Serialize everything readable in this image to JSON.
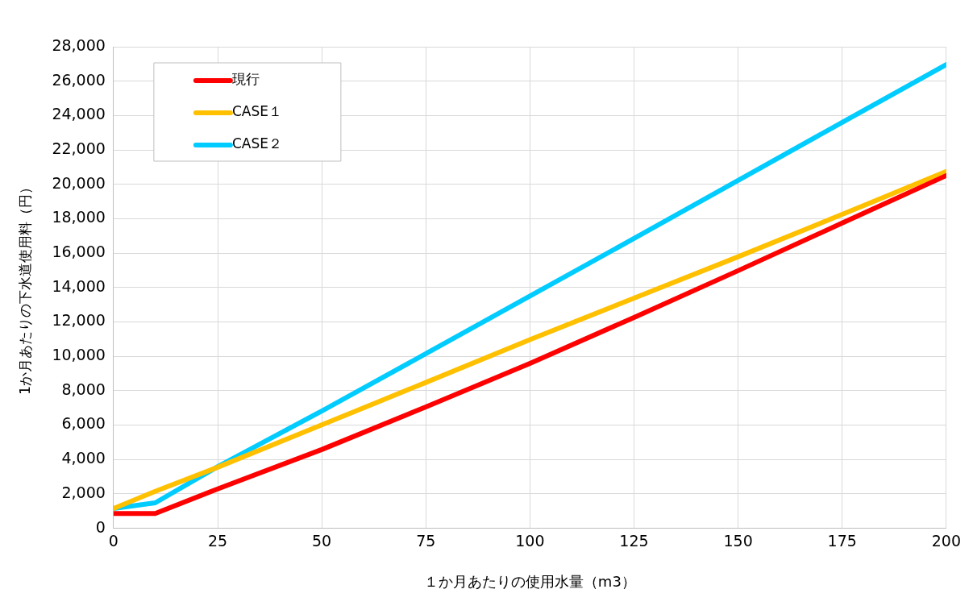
{
  "chart_data": {
    "type": "line",
    "xlabel": "１か月あたりの使用水量（m3）",
    "ylabel": "1か月あたりの下水道使用料（円）",
    "x": [
      0,
      10,
      25,
      50,
      75,
      100,
      125,
      150,
      175,
      200
    ],
    "series": [
      {
        "name": "現行",
        "color": "#ff0000",
        "values": [
          860,
          860,
          2290,
          4580,
          7060,
          9590,
          12260,
          14980,
          17750,
          20510
        ]
      },
      {
        "name": "CASE１",
        "color": "#ffc000",
        "values": [
          1150,
          2150,
          3550,
          6010,
          8480,
          10970,
          13380,
          15790,
          18250,
          20750
        ]
      },
      {
        "name": "CASE２",
        "color": "#00ccff",
        "values": [
          1150,
          1480,
          3580,
          6820,
          10150,
          13500,
          16850,
          20230,
          23600,
          26960
        ]
      }
    ],
    "xlim": [
      0,
      200
    ],
    "xticks": [
      0,
      25,
      50,
      75,
      100,
      125,
      150,
      175,
      200
    ],
    "ylim": [
      0,
      28000
    ],
    "yticks": [
      0,
      {
        "value": 2000,
        "label": "2,000"
      },
      {
        "value": 4000,
        "label": "4,000"
      },
      {
        "value": 6000,
        "label": "6,000"
      },
      {
        "value": 8000,
        "label": "8,000"
      },
      {
        "value": 10000,
        "label": "10,000"
      },
      {
        "value": 12000,
        "label": "12,000"
      },
      {
        "value": 14000,
        "label": "14,000"
      },
      {
        "value": 16000,
        "label": "16,000"
      },
      {
        "value": 18000,
        "label": "18,000"
      },
      {
        "value": 20000,
        "label": "20,000"
      },
      {
        "value": 22000,
        "label": "22,000"
      },
      {
        "value": 24000,
        "label": "24,000"
      },
      {
        "value": 26000,
        "label": "26,000"
      },
      {
        "value": 28000,
        "label": "28,000"
      }
    ],
    "grid": true,
    "legend": "top left",
    "marker": "none",
    "line_style": "solid"
  }
}
